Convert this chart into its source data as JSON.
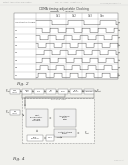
{
  "bg_color": "#f0f0ec",
  "header_color": "#aaaaaa",
  "line_color": "#666666",
  "text_color": "#444444",
  "box_face": "#ffffff",
  "box_edge": "#777777",
  "grid_color": "#999999",
  "wave_color": "#444444",
  "dashed_color": "#888888"
}
